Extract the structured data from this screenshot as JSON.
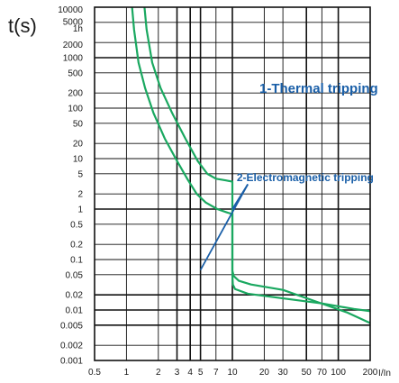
{
  "chart_data": {
    "type": "line",
    "title": "",
    "ylabel": "t(s)",
    "xlabel": "I/In",
    "x_scale": "log",
    "y_scale": "log",
    "xlim": [
      0.5,
      200
    ],
    "ylim": [
      0.001,
      10000
    ],
    "grid": true,
    "x_ticks": [
      {
        "value": 0.5,
        "label": "0.5"
      },
      {
        "value": 1,
        "label": "1"
      },
      {
        "value": 2,
        "label": "2"
      },
      {
        "value": 3,
        "label": "3"
      },
      {
        "value": 4,
        "label": "4"
      },
      {
        "value": 5,
        "label": "5"
      },
      {
        "value": 7,
        "label": "7"
      },
      {
        "value": 10,
        "label": "10"
      },
      {
        "value": 20,
        "label": "20"
      },
      {
        "value": 30,
        "label": "30"
      },
      {
        "value": 50,
        "label": "50"
      },
      {
        "value": 70,
        "label": "70"
      },
      {
        "value": 100,
        "label": "100"
      },
      {
        "value": 200,
        "label": "200"
      }
    ],
    "y_ticks": [
      {
        "value": 10000,
        "label": "10000"
      },
      {
        "value": 5000,
        "label": "5000"
      },
      {
        "value": 3600,
        "label": "1h"
      },
      {
        "value": 2000,
        "label": "2000"
      },
      {
        "value": 1000,
        "label": "1000"
      },
      {
        "value": 500,
        "label": "500"
      },
      {
        "value": 200,
        "label": "200"
      },
      {
        "value": 100,
        "label": "100"
      },
      {
        "value": 50,
        "label": "50"
      },
      {
        "value": 20,
        "label": "20"
      },
      {
        "value": 10,
        "label": "10"
      },
      {
        "value": 5,
        "label": "5"
      },
      {
        "value": 2,
        "label": "2"
      },
      {
        "value": 1,
        "label": "1"
      },
      {
        "value": 0.5,
        "label": "0.5"
      },
      {
        "value": 0.2,
        "label": "0.2"
      },
      {
        "value": 0.1,
        "label": "0.1"
      },
      {
        "value": 0.05,
        "label": "0.05"
      },
      {
        "value": 0.02,
        "label": "0.02"
      },
      {
        "value": 0.01,
        "label": "0.01"
      },
      {
        "value": 0.005,
        "label": "0.005"
      },
      {
        "value": 0.002,
        "label": "0.002"
      },
      {
        "value": 0.001,
        "label": "0.001"
      }
    ],
    "grid_x": [
      1,
      2,
      3,
      4,
      5,
      7,
      10,
      20,
      30,
      50,
      70,
      100
    ],
    "grid_x_bold": [
      3,
      4,
      5,
      10,
      50,
      100
    ],
    "grid_y": [
      5000,
      2000,
      1000,
      500,
      200,
      100,
      50,
      20,
      10,
      5,
      2,
      1,
      0.5,
      0.2,
      0.1,
      0.05,
      0.02,
      0.01,
      0.005,
      0.002
    ],
    "grid_y_bold": [
      1000,
      1,
      0.02,
      0.01,
      0.005
    ],
    "series": [
      {
        "color": "#1aa860",
        "points": [
          [
            1.13,
            10000
          ],
          [
            1.18,
            3600
          ],
          [
            1.3,
            800
          ],
          [
            1.5,
            250
          ],
          [
            1.8,
            80
          ],
          [
            2.3,
            25
          ],
          [
            3.0,
            9
          ],
          [
            3.8,
            3.8
          ],
          [
            4.6,
            2.0
          ],
          [
            5.6,
            1.35
          ],
          [
            7.2,
            1.0
          ],
          [
            9.0,
            0.85
          ],
          [
            10.0,
            0.8
          ],
          [
            10.0,
            0.5
          ],
          [
            10.0,
            0.2
          ],
          [
            10.0,
            0.1
          ],
          [
            10.0,
            0.05
          ],
          [
            10.1,
            0.032
          ],
          [
            10.6,
            0.026
          ],
          [
            14,
            0.021
          ],
          [
            30,
            0.017
          ],
          [
            70,
            0.0135
          ],
          [
            140,
            0.0105
          ],
          [
            200,
            0.0095
          ]
        ]
      },
      {
        "color": "#1aa860",
        "points": [
          [
            1.48,
            10000
          ],
          [
            1.55,
            3600
          ],
          [
            1.75,
            800
          ],
          [
            2.1,
            250
          ],
          [
            2.7,
            80
          ],
          [
            3.6,
            25
          ],
          [
            4.7,
            9
          ],
          [
            5.8,
            5.0
          ],
          [
            7.0,
            4.0
          ],
          [
            8.7,
            3.7
          ],
          [
            10.0,
            3.5
          ],
          [
            10.0,
            2.0
          ],
          [
            10.0,
            1.0
          ],
          [
            10.0,
            0.5
          ],
          [
            10.0,
            0.2
          ],
          [
            10.0,
            0.1
          ],
          [
            10.0,
            0.06
          ],
          [
            10.3,
            0.047
          ],
          [
            11.5,
            0.038
          ],
          [
            15,
            0.032
          ],
          [
            30,
            0.025
          ],
          [
            60,
            0.015
          ],
          [
            120,
            0.009
          ],
          [
            200,
            0.0055
          ]
        ]
      }
    ],
    "annotations": [
      {
        "text": "1-Thermal tripping",
        "x": 18,
        "y": 200,
        "size": 15
      },
      {
        "text": "2-Electromagnetic tripping",
        "x": 11,
        "y": 3.6,
        "size": 12
      }
    ],
    "pointers": [
      {
        "from": [
          10.0,
          1.0
        ],
        "to": [
          14,
          3.1
        ]
      },
      {
        "from": [
          5.0,
          0.062
        ],
        "to": [
          14,
          3.1
        ]
      }
    ],
    "colors": {
      "curve": "#1aa860",
      "annotation": "#1a5fa8",
      "grid": "#111111"
    }
  }
}
